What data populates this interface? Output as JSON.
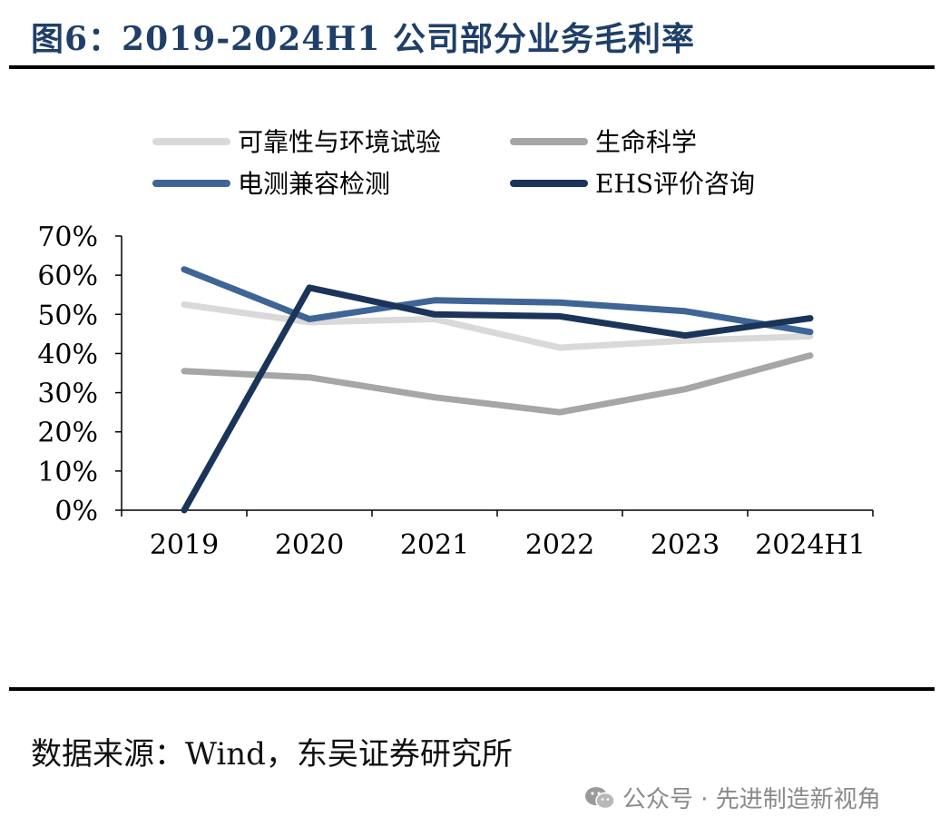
{
  "header": {
    "title": "图6：2019-2024H1 公司部分业务毛利率"
  },
  "footer": {
    "source": "数据来源：Wind，东吴证券研究所",
    "watermark": "公众号 · 先进制造新视角"
  },
  "chart_data": {
    "type": "line",
    "title": "",
    "xlabel": "",
    "ylabel": "",
    "categories": [
      "2019",
      "2020",
      "2021",
      "2022",
      "2023",
      "2024H1"
    ],
    "ylim": [
      0,
      70
    ],
    "yticks": [
      "70%",
      "60%",
      "50%",
      "40%",
      "30%",
      "20%",
      "10%",
      "0%"
    ],
    "y_unit": "%",
    "grid": false,
    "legend_position": "top",
    "series": [
      {
        "name": "可靠性与环境试验",
        "color": "#d9d9d9",
        "values": [
          52.5,
          48.0,
          48.8,
          41.5,
          43.3,
          44.4
        ]
      },
      {
        "name": "生命科学",
        "color": "#a6a6a6",
        "values": [
          35.5,
          33.9,
          28.8,
          25.0,
          30.9,
          39.5
        ]
      },
      {
        "name": "电测兼容检测",
        "color": "#3e6596",
        "values": [
          61.5,
          48.8,
          53.6,
          53.0,
          50.8,
          45.5
        ]
      },
      {
        "name": "EHS评价咨询",
        "color": "#1b3459",
        "values": [
          0.0,
          56.8,
          50.0,
          49.5,
          44.6,
          49.0
        ]
      }
    ]
  }
}
